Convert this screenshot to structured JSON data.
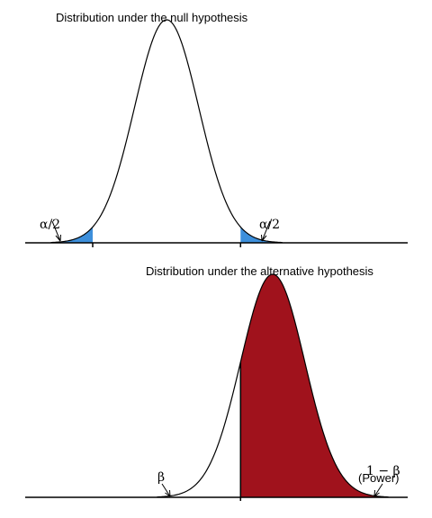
{
  "chart_data": [
    {
      "type": "area",
      "title": "Distribution under the null hypothesis",
      "distribution": {
        "family": "normal",
        "mean": 0,
        "sd": 1
      },
      "xlim": [
        -4.4,
        7.5
      ],
      "critical_values": [
        -2.3,
        2.3
      ],
      "shaded_regions": [
        {
          "label": "α/2",
          "from": -4.4,
          "to": -2.3,
          "color": "#3d8fdb"
        },
        {
          "label": "α/2",
          "from": 2.3,
          "to": 7.5,
          "color": "#3d8fdb"
        }
      ],
      "annotations": [
        "α/2",
        "α/2"
      ]
    },
    {
      "type": "area",
      "title": "Distribution under the alternative hypothesis",
      "distribution": {
        "family": "normal",
        "mean": 3.3,
        "sd": 1
      },
      "xlim": [
        -4.4,
        7.5
      ],
      "critical_value": 2.3,
      "shaded_regions": [
        {
          "label": "1 − β (Power)",
          "from": 2.3,
          "to": 7.5,
          "color": "#a0121c"
        }
      ],
      "annotations": [
        "β",
        "1 − β",
        "(Power)"
      ]
    }
  ]
}
